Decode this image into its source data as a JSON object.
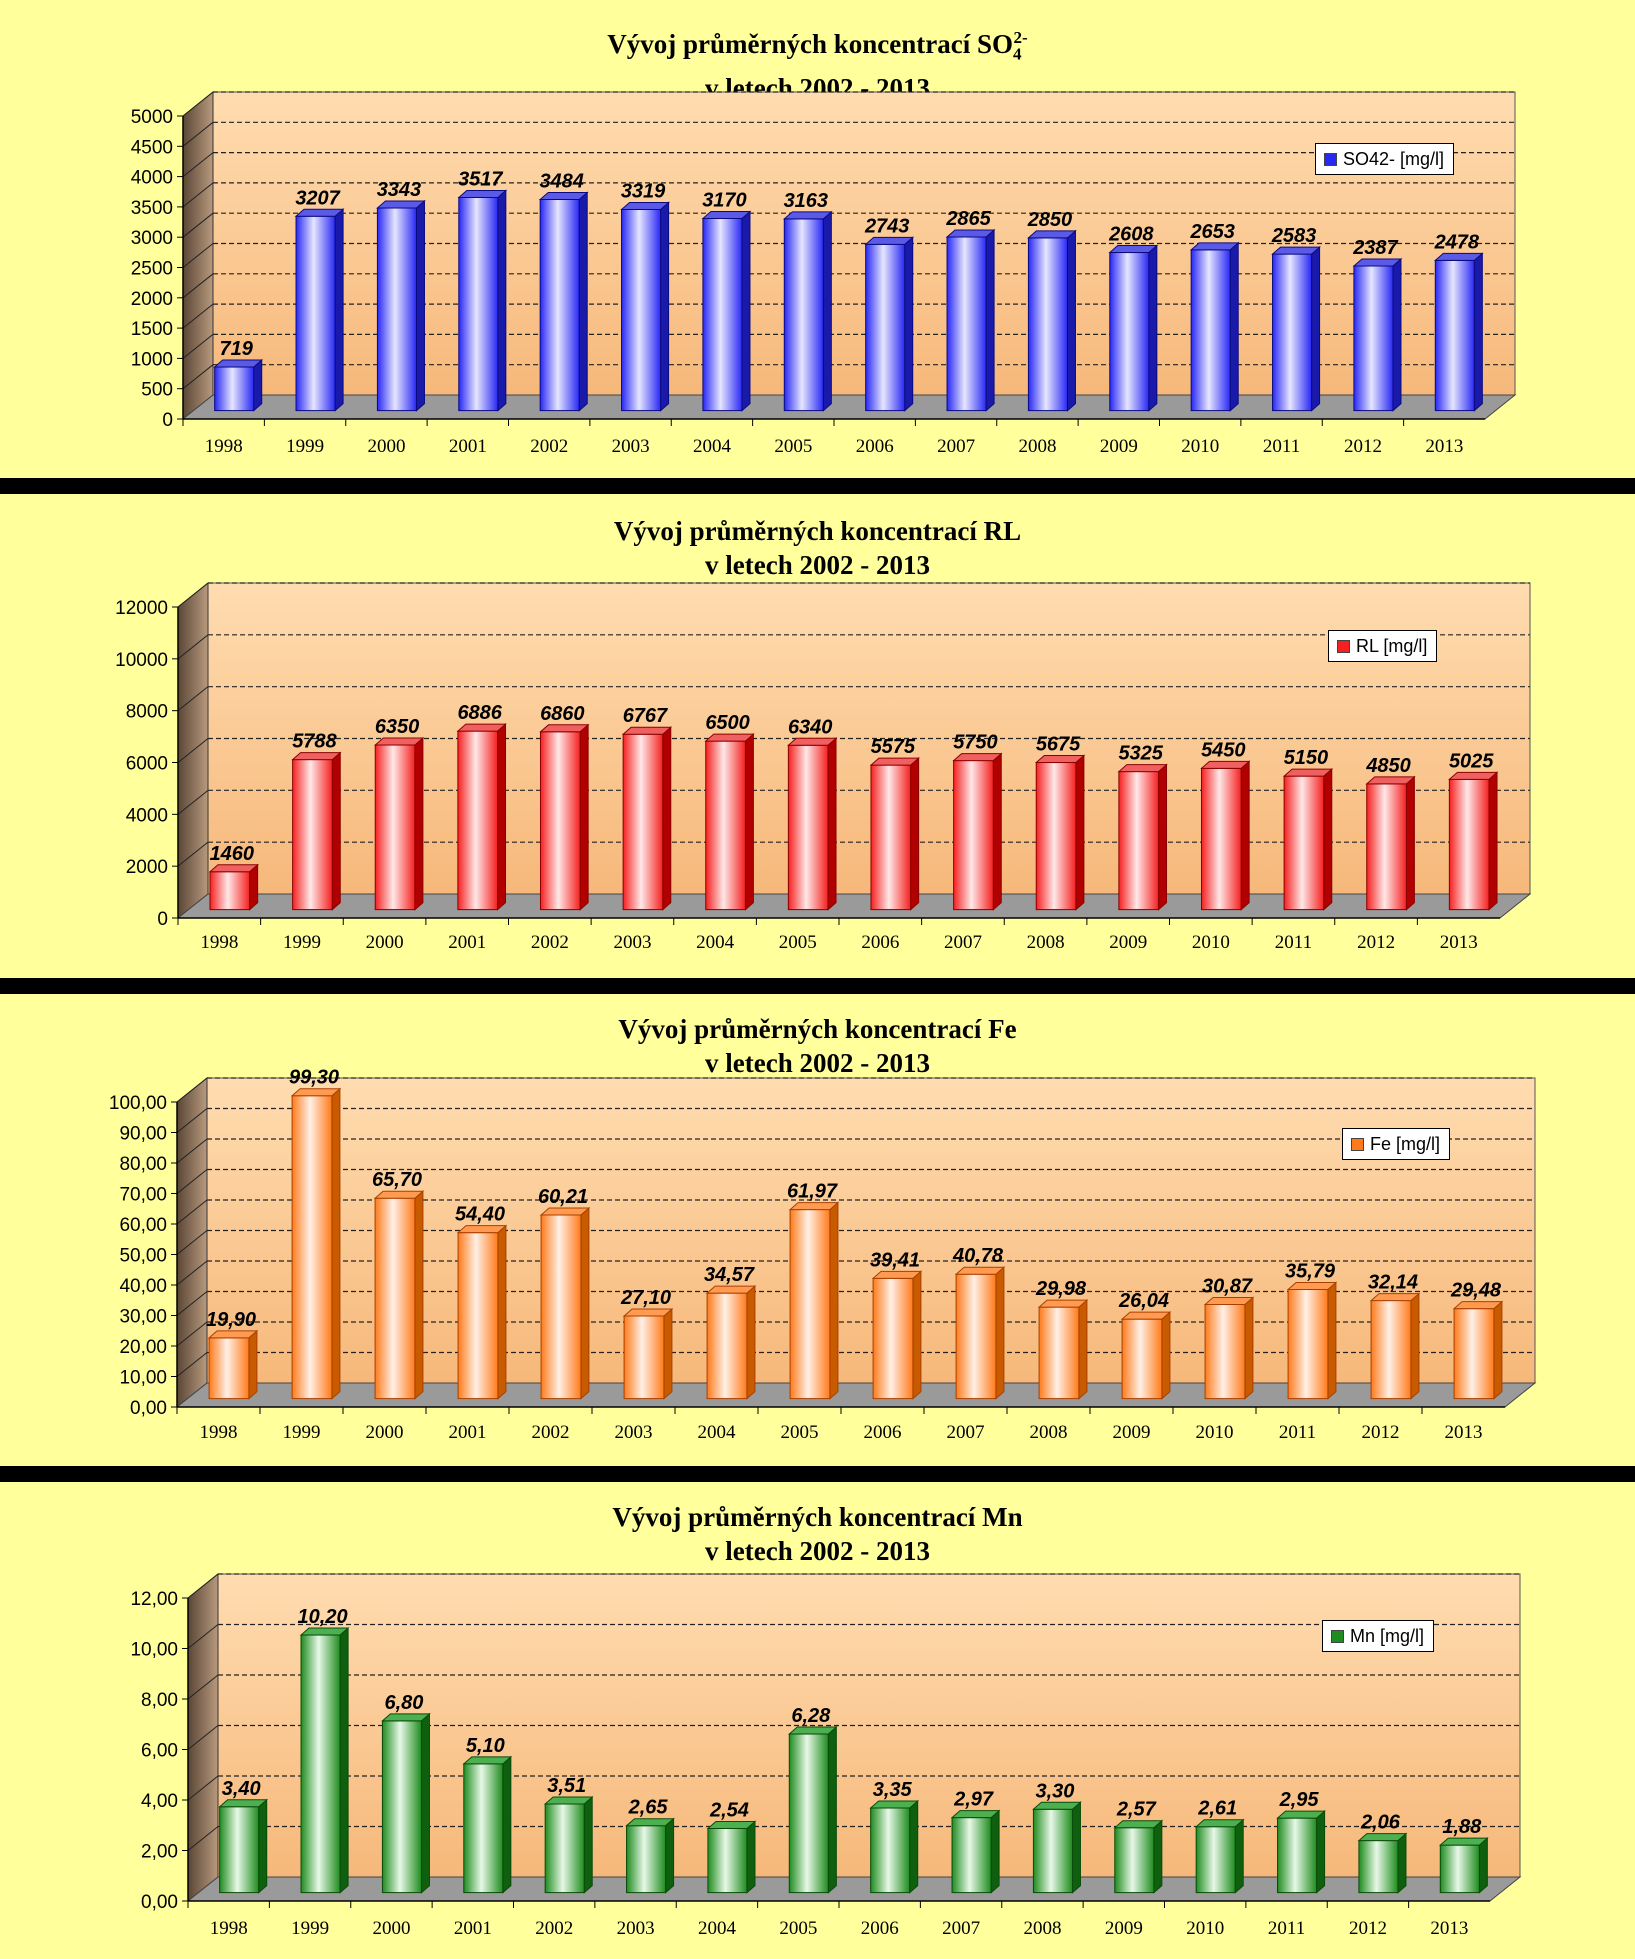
{
  "chart_data": [
    {
      "type": "bar",
      "title": {
        "line1": "Vývoj průměrných koncentrací SO",
        "sub": "4",
        "sup": "2-",
        "line2": "v letech  2002 - 2013"
      },
      "legend": "SO42- [mg/l]",
      "categories": [
        "1998",
        "1999",
        "2000",
        "2001",
        "2002",
        "2003",
        "2004",
        "2005",
        "2006",
        "2007",
        "2008",
        "2009",
        "2010",
        "2011",
        "2012",
        "2013"
      ],
      "series": [
        {
          "name": "SO42- [mg/l]",
          "values": [
            719,
            3207,
            3343,
            3517,
            3484,
            3319,
            3170,
            3163,
            2743,
            2865,
            2850,
            2608,
            2653,
            2583,
            2387,
            2478
          ],
          "labels": [
            "719",
            "3207",
            "3343",
            "3517",
            "3484",
            "3319",
            "3170",
            "3163",
            "2743",
            "2865",
            "2850",
            "2608",
            "2653",
            "2583",
            "2387",
            "2478"
          ]
        }
      ],
      "ylim": [
        0,
        5000
      ],
      "yticks": [
        "0",
        "500",
        "1000",
        "1500",
        "2000",
        "2500",
        "3000",
        "3500",
        "4000",
        "4500",
        "5000"
      ],
      "grid": true,
      "legend_position": "top-right",
      "colors": {
        "light": "#E6E6FF",
        "main": "#2828F5",
        "dark": "#0A0A80",
        "top": "#5A5AE6",
        "side": "#1A1AAA"
      }
    },
    {
      "type": "bar",
      "title": {
        "line1": "Vývoj průměrných koncentrací RL",
        "line2": "v letech  2002 - 2013"
      },
      "legend": "RL [mg/l]",
      "categories": [
        "1998",
        "1999",
        "2000",
        "2001",
        "2002",
        "2003",
        "2004",
        "2005",
        "2006",
        "2007",
        "2008",
        "2009",
        "2010",
        "2011",
        "2012",
        "2013"
      ],
      "series": [
        {
          "name": "RL [mg/l]",
          "values": [
            1460,
            5788,
            6350,
            6886,
            6860,
            6767,
            6500,
            6340,
            5575,
            5750,
            5675,
            5325,
            5450,
            5150,
            4850,
            5025
          ],
          "labels": [
            "1460",
            "5788",
            "6350",
            "6886",
            "6860",
            "6767",
            "6500",
            "6340",
            "5575",
            "5750",
            "5675",
            "5325",
            "5450",
            "5150",
            "4850",
            "5025"
          ]
        }
      ],
      "ylim": [
        0,
        12000
      ],
      "yticks": [
        "0",
        "2000",
        "4000",
        "6000",
        "8000",
        "10000",
        "12000"
      ],
      "grid": true,
      "legend_position": "top-right",
      "colors": {
        "light": "#FFE8E8",
        "main": "#F52020",
        "dark": "#8A0000",
        "top": "#F06060",
        "side": "#B00000"
      }
    },
    {
      "type": "bar",
      "title": {
        "line1": "Vývoj průměrných koncentrací Fe",
        "line2": "v letech  2002 - 2013"
      },
      "legend": "Fe [mg/l]",
      "categories": [
        "1998",
        "1999",
        "2000",
        "2001",
        "2002",
        "2003",
        "2004",
        "2005",
        "2006",
        "2007",
        "2008",
        "2009",
        "2010",
        "2011",
        "2012",
        "2013"
      ],
      "series": [
        {
          "name": "Fe [mg/l]",
          "values": [
            19.9,
            99.3,
            65.7,
            54.4,
            60.21,
            27.1,
            34.57,
            61.97,
            39.41,
            40.78,
            29.98,
            26.04,
            30.87,
            35.79,
            32.14,
            29.48
          ],
          "labels": [
            "19,90",
            "99,30",
            "65,70",
            "54,40",
            "60,21",
            "27,10",
            "34,57",
            "61,97",
            "39,41",
            "40,78",
            "29,98",
            "26,04",
            "30,87",
            "35,79",
            "32,14",
            "29,48"
          ]
        }
      ],
      "ylim": [
        0,
        100
      ],
      "yticks": [
        "0,00",
        "10,00",
        "20,00",
        "30,00",
        "40,00",
        "50,00",
        "60,00",
        "70,00",
        "80,00",
        "90,00",
        "100,00"
      ],
      "grid": true,
      "legend_position": "top-right",
      "colors": {
        "light": "#FFF0E6",
        "main": "#FF7A1A",
        "dark": "#A84000",
        "top": "#FF9A50",
        "side": "#C85A00"
      }
    },
    {
      "type": "bar",
      "title": {
        "line1": "Vývoj průměrných koncentrací Mn",
        "line2": "v letech  2002 - 2013"
      },
      "legend": "Mn [mg/l]",
      "categories": [
        "1998",
        "1999",
        "2000",
        "2001",
        "2002",
        "2003",
        "2004",
        "2005",
        "2006",
        "2007",
        "2008",
        "2009",
        "2010",
        "2011",
        "2012",
        "2013"
      ],
      "series": [
        {
          "name": "Mn [mg/l]",
          "values": [
            3.4,
            10.2,
            6.8,
            5.1,
            3.51,
            2.65,
            2.54,
            6.28,
            3.35,
            2.97,
            3.3,
            2.57,
            2.61,
            2.95,
            2.06,
            1.88
          ],
          "labels": [
            "3,40",
            "10,20",
            "6,80",
            "5,10",
            "3,51",
            "2,65",
            "2,54",
            "6,28",
            "3,35",
            "2,97",
            "3,30",
            "2,57",
            "2,61",
            "2,95",
            "2,06",
            "1,88"
          ]
        }
      ],
      "ylim": [
        0,
        12
      ],
      "yticks": [
        "0,00",
        "2,00",
        "4,00",
        "6,00",
        "8,00",
        "10,00",
        "12,00"
      ],
      "grid": true,
      "legend_position": "top-right",
      "colors": {
        "light": "#E8F8E8",
        "main": "#1E8C1E",
        "dark": "#0A4A0A",
        "top": "#4CAF50",
        "side": "#0E600E"
      }
    }
  ]
}
